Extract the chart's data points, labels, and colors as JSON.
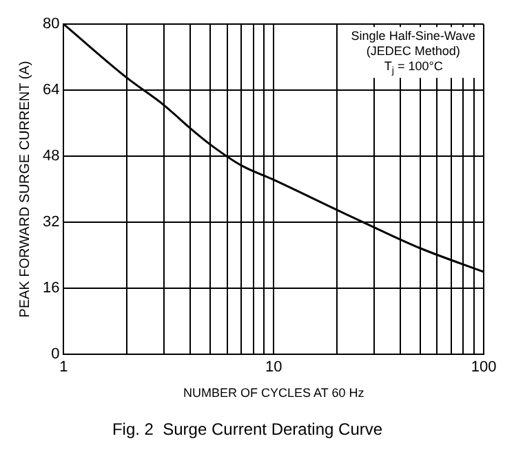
{
  "chart_data": {
    "type": "line",
    "title": "Fig. 2  Surge Current Derating Curve",
    "xlabel": "NUMBER OF CYCLES AT 60 Hz",
    "ylabel": "PEAK FORWARD SURGE CURRENT (A)",
    "annotations": [
      "Single Half-Sine-Wave",
      "(JEDEC Method)",
      "T$_{j}$ = 100°C"
    ],
    "series": [
      {
        "color": "#000000",
        "x": [
          1,
          2,
          3,
          4,
          5,
          7,
          10,
          20,
          30,
          50,
          100
        ],
        "values": [
          80,
          67,
          60.4,
          54.8,
          50.8,
          45.8,
          42.3,
          35,
          30.8,
          25.7,
          20
        ]
      }
    ],
    "log": "x",
    "xlim": [
      1,
      100
    ],
    "xticks": [
      1,
      {
        "value": 2,
        "label": null
      },
      {
        "value": 3,
        "label": null
      },
      {
        "value": 4,
        "label": null
      },
      {
        "value": 5,
        "label": null
      },
      {
        "value": 6,
        "label": null
      },
      {
        "value": 7,
        "label": null
      },
      {
        "value": 8,
        "label": null
      },
      {
        "value": 9,
        "label": null
      },
      10,
      {
        "value": 20,
        "label": null
      },
      {
        "value": 30,
        "label": null
      },
      {
        "value": 40,
        "label": null
      },
      {
        "value": 50,
        "label": null
      },
      {
        "value": 60,
        "label": null
      },
      {
        "value": 70,
        "label": null
      },
      {
        "value": 80,
        "label": null
      },
      {
        "value": 90,
        "label": null
      },
      100
    ],
    "ylim": [
      0,
      80
    ],
    "yticks": [
      0,
      16,
      32,
      48,
      64,
      80
    ],
    "grid": true,
    "legend": false,
    "marker": "none",
    "line_style": "solid"
  }
}
